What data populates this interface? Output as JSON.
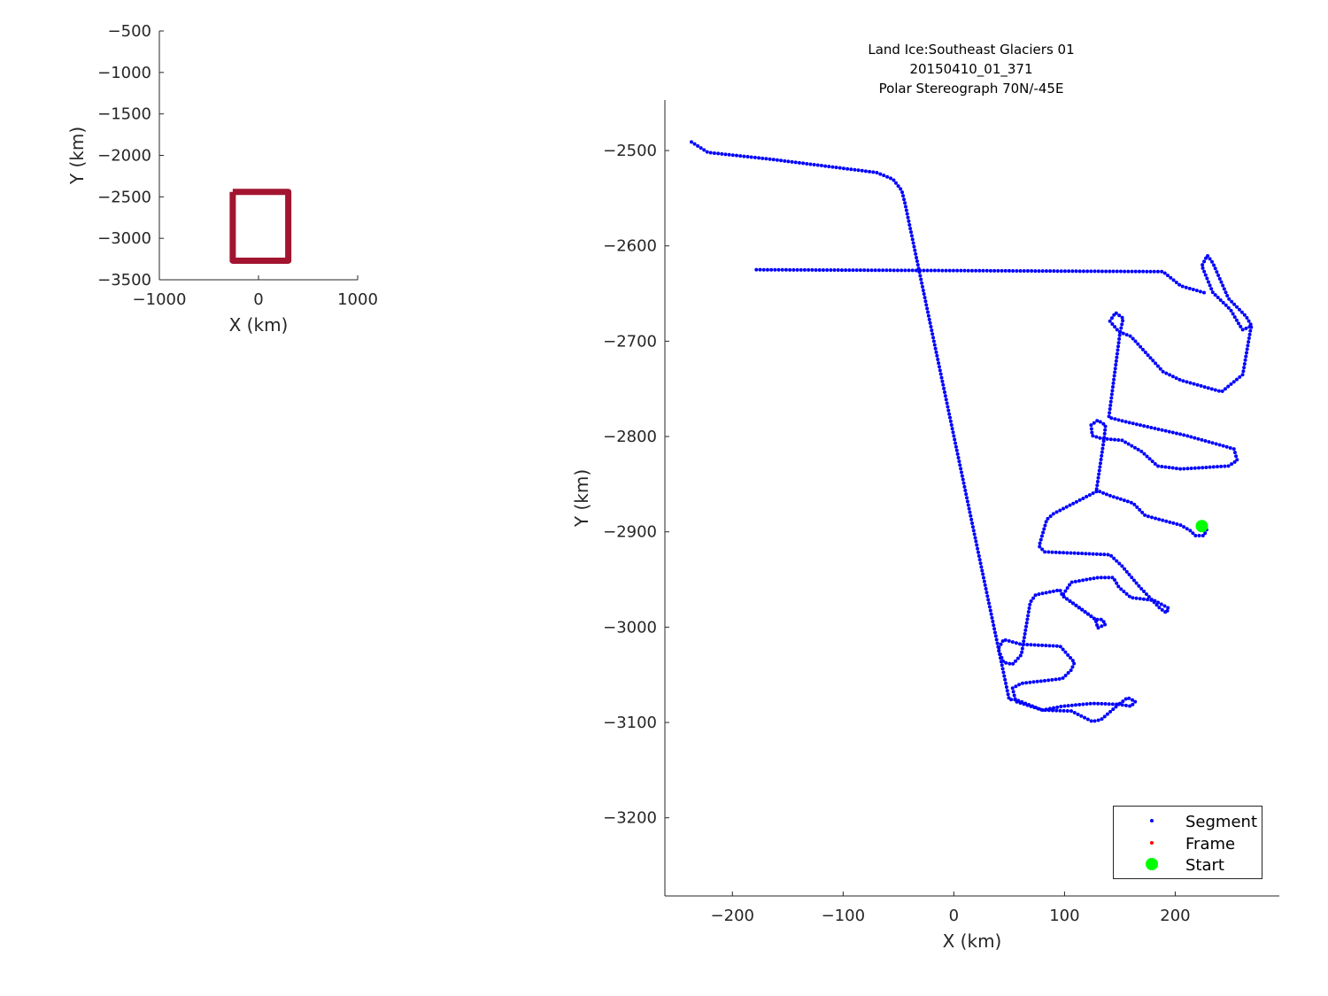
{
  "chart_data": [
    {
      "type": "line",
      "xlabel": "X (km)",
      "ylabel": "Y (km)",
      "xlim": [
        -1000,
        1000
      ],
      "ylim": [
        -3500,
        -500
      ],
      "xticks": [
        -1000,
        0,
        1000
      ],
      "yticks": [
        -500,
        -1000,
        -1500,
        -2000,
        -2500,
        -3000,
        -3500
      ],
      "grid": false,
      "color": "#a2142f",
      "series": [
        {
          "x": [
            -260,
            300,
            300,
            -260,
            -260
          ],
          "y": [
            -2440,
            -2440,
            -3270,
            -3270,
            -2440
          ]
        }
      ]
    },
    {
      "type": "scatter",
      "title": [
        "Land Ice:Southeast Glaciers 01",
        "20150410_01_371",
        "Polar Stereograph 70N/-45E"
      ],
      "xlabel": "X (km)",
      "ylabel": "Y (km)",
      "xlim": [
        -261,
        294
      ],
      "ylim": [
        -3282,
        -2447
      ],
      "xticks": [
        -200,
        -100,
        0,
        100,
        200
      ],
      "yticks": [
        -2500,
        -2600,
        -2700,
        -2800,
        -2900,
        -3000,
        -3100,
        -3200
      ],
      "grid": false,
      "legend": {
        "placement": "bottom-right",
        "entries": [
          "Segment",
          "Frame",
          "Start"
        ]
      },
      "colors": {
        "segment": "#0000ff",
        "frame": "#ff0000",
        "start": "#00ff00"
      },
      "series": [
        {
          "name": "Segment",
          "path": [
            [
              -237,
              -2491
            ],
            [
              -222,
              -2502
            ],
            [
              -166,
              -2509
            ],
            [
              -70,
              -2523
            ],
            [
              -55,
              -2530
            ],
            [
              -47,
              -2542
            ],
            [
              -44,
              -2556
            ],
            [
              50,
              -3076
            ],
            [
              56,
              -3076
            ],
            [
              80,
              -3087
            ],
            [
              98,
              -3083
            ],
            [
              125,
              -3080
            ],
            [
              149,
              -3081
            ],
            [
              157,
              -3074
            ],
            [
              164,
              -3078
            ],
            [
              160,
              -3083
            ],
            [
              149,
              -3081
            ],
            [
              133,
              -3097
            ],
            [
              125,
              -3099
            ],
            [
              106,
              -3088
            ],
            [
              80,
              -3087
            ],
            [
              56,
              -3078
            ],
            [
              53,
              -3064
            ],
            [
              61,
              -3059
            ],
            [
              98,
              -3054
            ],
            [
              106,
              -3045
            ],
            [
              109,
              -3037
            ],
            [
              96,
              -3020
            ],
            [
              61,
              -3018
            ],
            [
              45,
              -3013
            ],
            [
              40,
              -3023
            ],
            [
              45,
              -3037
            ],
            [
              53,
              -3039
            ],
            [
              61,
              -3029
            ],
            [
              69,
              -2974
            ],
            [
              74,
              -2966
            ],
            [
              96,
              -2961
            ],
            [
              98,
              -2967
            ],
            [
              114,
              -2980
            ],
            [
              128,
              -2992
            ],
            [
              130,
              -3001
            ],
            [
              137,
              -2997
            ],
            [
              134,
              -2992
            ],
            [
              128,
              -2992
            ],
            [
              98,
              -2967
            ],
            [
              106,
              -2953
            ],
            [
              130,
              -2948
            ],
            [
              144,
              -2948
            ],
            [
              149,
              -2958
            ],
            [
              160,
              -2969
            ],
            [
              181,
              -2972
            ],
            [
              194,
              -2980
            ],
            [
              192,
              -2985
            ],
            [
              186,
              -2980
            ],
            [
              168,
              -2958
            ],
            [
              152,
              -2936
            ],
            [
              141,
              -2924
            ],
            [
              82,
              -2921
            ],
            [
              77,
              -2915
            ],
            [
              84,
              -2887
            ],
            [
              90,
              -2881
            ],
            [
              125,
              -2860
            ],
            [
              130,
              -2857
            ],
            [
              141,
              -2862
            ],
            [
              162,
              -2870
            ],
            [
              173,
              -2883
            ],
            [
              205,
              -2893
            ],
            [
              214,
              -2899
            ],
            [
              218,
              -2904
            ],
            [
              226,
              -2904
            ],
            [
              229,
              -2896
            ],
            [
              224,
              -2894
            ]
          ]
        },
        {
          "name": "Segment",
          "path": [
            [
              129,
              -2855
            ],
            [
              136,
              -2800
            ],
            [
              137,
              -2788
            ],
            [
              130,
              -2783
            ],
            [
              124,
              -2788
            ],
            [
              125,
              -2799
            ],
            [
              133,
              -2802
            ],
            [
              152,
              -2804
            ],
            [
              170,
              -2816
            ],
            [
              184,
              -2831
            ],
            [
              205,
              -2834
            ],
            [
              248,
              -2831
            ],
            [
              256,
              -2825
            ],
            [
              253,
              -2813
            ],
            [
              210,
              -2799
            ],
            [
              157,
              -2785
            ],
            [
              140,
              -2780
            ],
            [
              150,
              -2692
            ],
            [
              153,
              -2676
            ],
            [
              146,
              -2670
            ],
            [
              141,
              -2679
            ],
            [
              149,
              -2690
            ],
            [
              160,
              -2695
            ],
            [
              189,
              -2732
            ],
            [
              205,
              -2741
            ],
            [
              242,
              -2753
            ],
            [
              261,
              -2735
            ],
            [
              268,
              -2688
            ],
            [
              269,
              -2684
            ],
            [
              261,
              -2688
            ],
            [
              258,
              -2683
            ],
            [
              250,
              -2667
            ],
            [
              234,
              -2649
            ],
            [
              224,
              -2621
            ],
            [
              229,
              -2610
            ],
            [
              234,
              -2618
            ],
            [
              248,
              -2655
            ],
            [
              264,
              -2674
            ],
            [
              269,
              -2684
            ]
          ]
        },
        {
          "name": "Segment",
          "path": [
            [
              226,
              -2649
            ],
            [
              205,
              -2642
            ],
            [
              189,
              -2627
            ],
            [
              18,
              -2626
            ],
            [
              -181,
              -2625
            ]
          ]
        },
        {
          "name": "Start",
          "points": [
            [
              224,
              -2894
            ]
          ]
        }
      ]
    }
  ]
}
